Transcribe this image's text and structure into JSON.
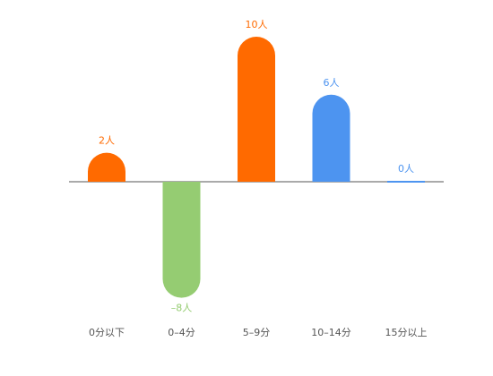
{
  "chart_data": {
    "type": "bar",
    "categories": [
      "0分以下",
      "0–4分",
      "5–9分",
      "10–14分",
      "15分以上"
    ],
    "values": [
      2,
      -8,
      10,
      6,
      0
    ],
    "value_labels": [
      "2人",
      "–8人",
      "10人",
      "6人",
      "0人"
    ],
    "colors": [
      "#ff6a00",
      "#95cc72",
      "#ff6a00",
      "#4d94f0",
      "#4d94f0"
    ]
  }
}
